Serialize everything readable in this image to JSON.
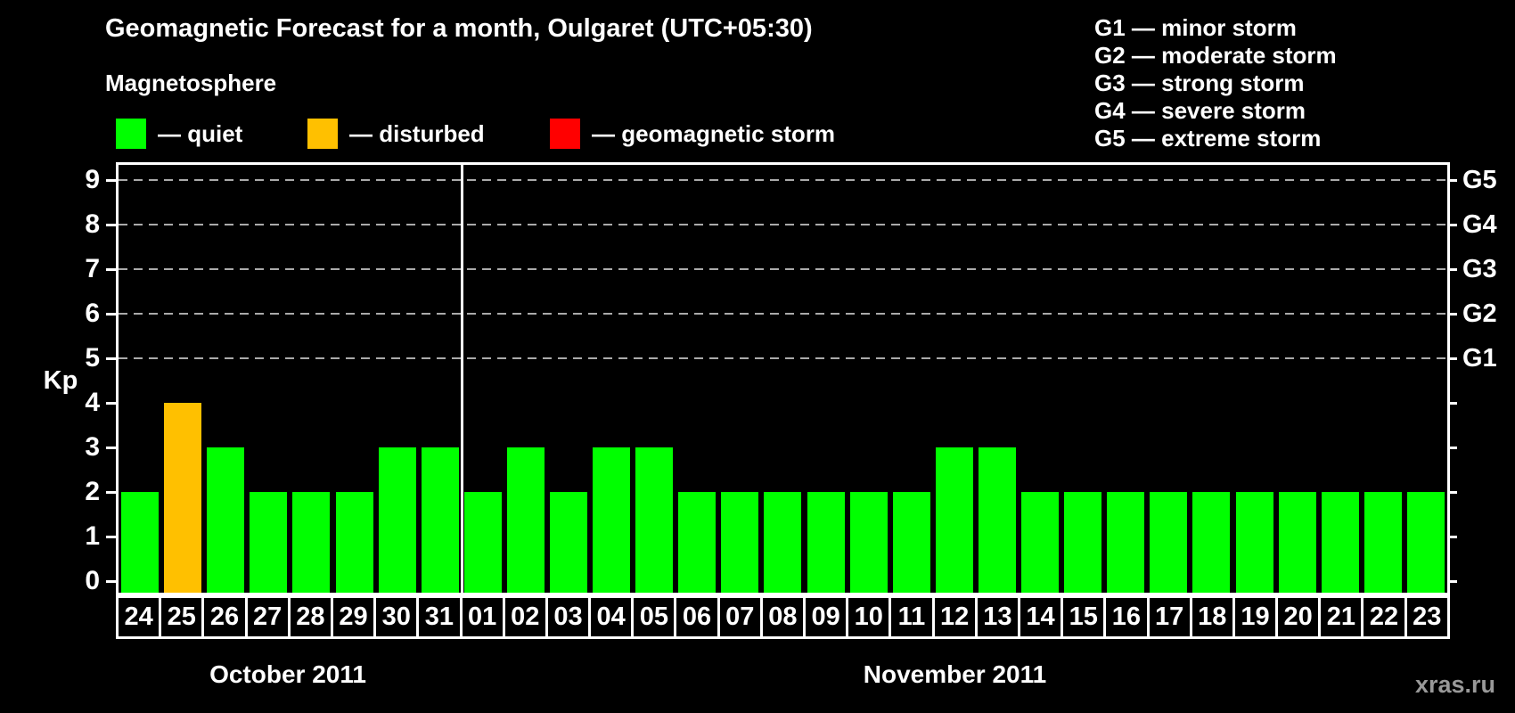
{
  "title": "Geomagnetic Forecast for a month, Oulgaret (UTC+05:30)",
  "legend": {
    "heading": "Magnetosphere",
    "items": [
      {
        "key": "quiet",
        "label": "— quiet",
        "color": "#00ff00"
      },
      {
        "key": "disturbed",
        "label": "— disturbed",
        "color": "#ffc000"
      },
      {
        "key": "storm",
        "label": "— geomagnetic storm",
        "color": "#ff0000"
      }
    ]
  },
  "storm_scale_legend": [
    "G1 — minor storm",
    "G2 — moderate storm",
    "G3 — strong storm",
    "G4 — severe storm",
    "G5 — extreme storm"
  ],
  "watermark": "xras.ru",
  "colors": {
    "quiet": "#00ff00",
    "disturbed": "#ffc000",
    "storm": "#ff0000",
    "grid": "#aaaaaa",
    "axis": "#ffffff",
    "watermark": "#999999",
    "background": "#000000"
  },
  "chart_data": {
    "type": "bar",
    "title": "Geomagnetic Forecast for a month, Oulgaret (UTC+05:30)",
    "ylabel": "Kp",
    "ylim": [
      0,
      9
    ],
    "yticks": [
      0,
      1,
      2,
      3,
      4,
      5,
      6,
      7,
      8,
      9
    ],
    "gridlines_at": [
      5,
      6,
      7,
      8,
      9
    ],
    "grid": "dashed horizontal at storm levels only",
    "right_axis_labels": [
      {
        "kp": 5,
        "label": "G1"
      },
      {
        "kp": 6,
        "label": "G2"
      },
      {
        "kp": 7,
        "label": "G3"
      },
      {
        "kp": 8,
        "label": "G4"
      },
      {
        "kp": 9,
        "label": "G5"
      }
    ],
    "months": [
      {
        "label": "October 2011",
        "days": 8
      },
      {
        "label": "November 2011",
        "days": 23
      }
    ],
    "categories": [
      "24",
      "25",
      "26",
      "27",
      "28",
      "29",
      "30",
      "31",
      "01",
      "02",
      "03",
      "04",
      "05",
      "06",
      "07",
      "08",
      "09",
      "10",
      "11",
      "12",
      "13",
      "14",
      "15",
      "16",
      "17",
      "18",
      "19",
      "20",
      "21",
      "22",
      "23"
    ],
    "series": [
      {
        "name": "Kp forecast",
        "values": [
          2,
          4,
          3,
          2,
          2,
          2,
          3,
          3,
          2,
          3,
          2,
          3,
          3,
          2,
          2,
          2,
          2,
          2,
          2,
          3,
          3,
          2,
          2,
          2,
          2,
          2,
          2,
          2,
          2,
          2,
          2
        ],
        "statuses": [
          "quiet",
          "disturbed",
          "quiet",
          "quiet",
          "quiet",
          "quiet",
          "quiet",
          "quiet",
          "quiet",
          "quiet",
          "quiet",
          "quiet",
          "quiet",
          "quiet",
          "quiet",
          "quiet",
          "quiet",
          "quiet",
          "quiet",
          "quiet",
          "quiet",
          "quiet",
          "quiet",
          "quiet",
          "quiet",
          "quiet",
          "quiet",
          "quiet",
          "quiet",
          "quiet",
          "quiet"
        ]
      }
    ]
  }
}
